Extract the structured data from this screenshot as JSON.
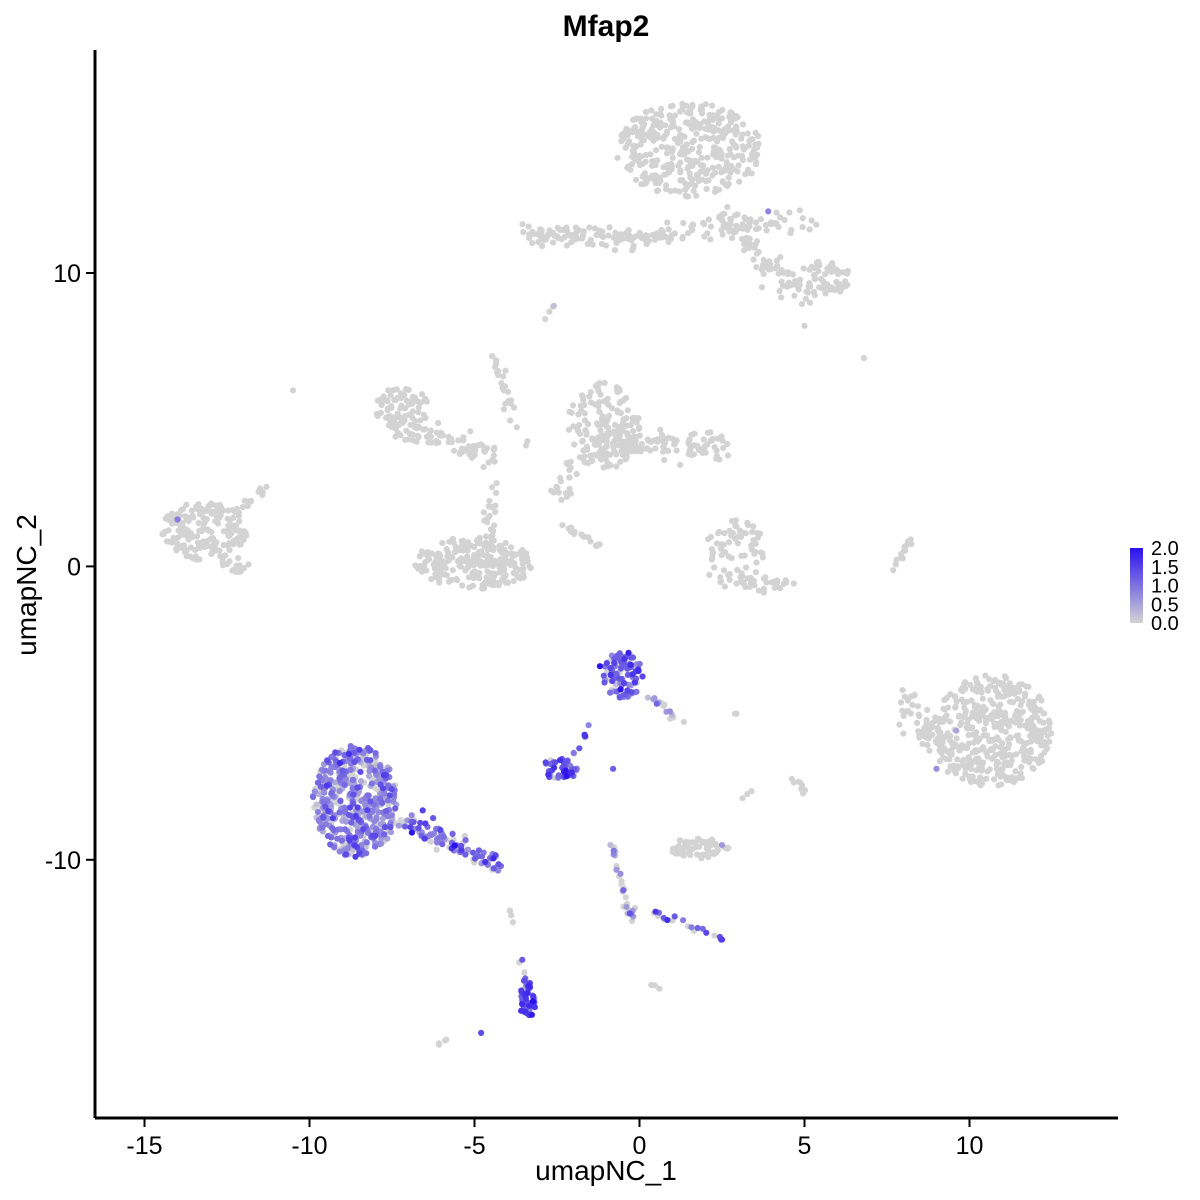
{
  "chart_data": {
    "type": "scatter",
    "title": "Mfap2",
    "xlabel": "umapNC_1",
    "ylabel": "umapNC_2",
    "xlim": [
      -16.5,
      14.5
    ],
    "ylim": [
      -18.8,
      17.6
    ],
    "x_ticks": [
      -15,
      -10,
      -5,
      0,
      5,
      10
    ],
    "x_tick_labels": [
      "-15",
      "-10",
      "-5",
      "0",
      "5",
      "10"
    ],
    "y_ticks": [
      -10,
      0,
      10
    ],
    "y_tick_labels": [
      "-10",
      "0",
      "10"
    ],
    "grid": false,
    "legend_position": "right",
    "colors": {
      "low": "#d3d3d3",
      "high": "#2b12ee",
      "axis": "#000000"
    },
    "color_scale": {
      "min": 0.0,
      "max": 2.0,
      "breaks": [
        2.0,
        1.5,
        1.0,
        0.5,
        0.0
      ],
      "break_labels": [
        "2.0",
        "1.5",
        "1.0",
        "0.5",
        "0.0"
      ]
    },
    "clusters": [
      {
        "shape": "blob",
        "cx": 1.5,
        "cy": 14.2,
        "rx": 2.2,
        "ry": 1.6,
        "n": 380,
        "expr": 0,
        "prob": 0
      },
      {
        "shape": "line",
        "x1": -3.5,
        "y1": 11.3,
        "x2": 1.0,
        "y2": 11.2,
        "w": 0.35,
        "n": 120,
        "expr": 0,
        "prob": 0
      },
      {
        "shape": "line",
        "x1": 1.0,
        "y1": 11.5,
        "x2": 5.5,
        "y2": 11.8,
        "w": 0.35,
        "n": 60,
        "expr": 0,
        "prob": 0
      },
      {
        "shape": "line",
        "x1": 2.5,
        "y1": 12.0,
        "x2": 5.0,
        "y2": 9.0,
        "w": 0.4,
        "n": 90,
        "expr": 0,
        "prob": 0
      },
      {
        "shape": "blob",
        "cx": 5.6,
        "cy": 9.8,
        "rx": 0.8,
        "ry": 0.6,
        "n": 60,
        "expr": 0,
        "prob": 0
      },
      {
        "shape": "blob",
        "cx": -7.2,
        "cy": 5.4,
        "rx": 0.8,
        "ry": 0.8,
        "n": 70,
        "expr": 0,
        "prob": 0
      },
      {
        "shape": "line",
        "x1": -7.2,
        "y1": 4.8,
        "x2": -4.5,
        "y2": 3.8,
        "w": 0.45,
        "n": 80,
        "expr": 0,
        "prob": 0
      },
      {
        "shape": "line",
        "x1": -4.5,
        "y1": 7.5,
        "x2": -3.5,
        "y2": 4.0,
        "w": 0.15,
        "n": 25,
        "expr": 0,
        "prob": 0
      },
      {
        "shape": "blob",
        "cx": -5.0,
        "cy": 0.1,
        "rx": 1.8,
        "ry": 0.9,
        "n": 240,
        "expr": 0,
        "prob": 0
      },
      {
        "shape": "line",
        "x1": -4.5,
        "y1": 2.8,
        "x2": -4.5,
        "y2": 0.8,
        "w": 0.2,
        "n": 20,
        "expr": 0,
        "prob": 0
      },
      {
        "shape": "blob",
        "cx": -1.1,
        "cy": 4.8,
        "rx": 1.1,
        "ry": 1.5,
        "n": 150,
        "expr": 0,
        "prob": 0
      },
      {
        "shape": "line",
        "x1": -1.2,
        "y1": 4.3,
        "x2": 2.6,
        "y2": 4.0,
        "w": 0.55,
        "n": 120,
        "expr": 0,
        "prob": 0
      },
      {
        "shape": "line",
        "x1": -2.0,
        "y1": 3.5,
        "x2": -2.5,
        "y2": 2.3,
        "w": 0.3,
        "n": 20,
        "expr": 0,
        "prob": 0
      },
      {
        "shape": "line",
        "x1": -2.5,
        "y1": 1.5,
        "x2": -1.2,
        "y2": 0.7,
        "w": 0.12,
        "n": 18,
        "expr": 0,
        "prob": 0
      },
      {
        "shape": "blob",
        "cx": 2.9,
        "cy": 0.6,
        "rx": 0.9,
        "ry": 1.0,
        "n": 60,
        "expr": 0,
        "prob": 0
      },
      {
        "shape": "line",
        "x1": 2.2,
        "y1": -0.4,
        "x2": 4.4,
        "y2": -0.6,
        "w": 0.25,
        "n": 40,
        "expr": 0,
        "prob": 0
      },
      {
        "shape": "line",
        "x1": 7.7,
        "y1": -0.2,
        "x2": 8.2,
        "y2": 1.0,
        "w": 0.1,
        "n": 14,
        "expr": 0,
        "prob": 0
      },
      {
        "shape": "blob",
        "cx": -13.2,
        "cy": 1.2,
        "rx": 1.3,
        "ry": 1.0,
        "n": 180,
        "expr": 0,
        "prob": 0
      },
      {
        "shape": "line",
        "x1": -12.7,
        "y1": 0.3,
        "x2": -12.0,
        "y2": -0.2,
        "w": 0.25,
        "n": 20,
        "expr": 0,
        "prob": 0
      },
      {
        "shape": "line",
        "x1": -12.4,
        "y1": 1.6,
        "x2": -11.3,
        "y2": 2.7,
        "w": 0.15,
        "n": 14,
        "expr": 0,
        "prob": 0
      },
      {
        "shape": "blob",
        "cx": 10.7,
        "cy": -5.6,
        "rx": 1.8,
        "ry": 1.9,
        "n": 420,
        "expr": 0,
        "prob": 0
      },
      {
        "shape": "line",
        "x1": 9.4,
        "y1": -6.5,
        "x2": 8.0,
        "y2": -4.5,
        "w": 0.5,
        "n": 60,
        "expr": 0,
        "prob": 0
      },
      {
        "shape": "blob",
        "cx": -8.6,
        "cy": -8.0,
        "rx": 1.3,
        "ry": 1.9,
        "n": 520,
        "expr": 0.8,
        "prob": 0.75
      },
      {
        "shape": "line",
        "x1": -7.3,
        "y1": -8.6,
        "x2": -4.2,
        "y2": -10.2,
        "w": 0.3,
        "n": 100,
        "expr": 1.0,
        "prob": 0.8
      },
      {
        "shape": "blob",
        "cx": -0.5,
        "cy": -3.7,
        "rx": 0.6,
        "ry": 0.8,
        "n": 100,
        "expr": 1.2,
        "prob": 0.75
      },
      {
        "shape": "line",
        "x1": 0.3,
        "y1": -4.3,
        "x2": 1.2,
        "y2": -5.4,
        "w": 0.15,
        "n": 15,
        "expr": 0.6,
        "prob": 0.5
      },
      {
        "shape": "blob",
        "cx": -2.4,
        "cy": -6.9,
        "rx": 0.6,
        "ry": 0.35,
        "n": 50,
        "expr": 1.4,
        "prob": 0.9
      },
      {
        "shape": "line",
        "x1": -2.0,
        "y1": -6.5,
        "x2": -1.5,
        "y2": -5.4,
        "w": 0.08,
        "n": 8,
        "expr": 1.0,
        "prob": 0.8
      },
      {
        "shape": "line",
        "x1": -0.9,
        "y1": -9.3,
        "x2": -0.2,
        "y2": -12.1,
        "w": 0.15,
        "n": 30,
        "expr": 0.6,
        "prob": 0.55
      },
      {
        "shape": "line",
        "x1": 0.5,
        "y1": -11.8,
        "x2": 2.6,
        "y2": -12.7,
        "w": 0.15,
        "n": 20,
        "expr": 1.0,
        "prob": 0.7
      },
      {
        "shape": "blob",
        "cx": -3.4,
        "cy": -14.8,
        "rx": 0.25,
        "ry": 0.6,
        "n": 40,
        "expr": 1.5,
        "prob": 0.8
      },
      {
        "shape": "line",
        "x1": -3.6,
        "y1": -13.4,
        "x2": -3.2,
        "y2": -15.2,
        "w": 0.12,
        "n": 14,
        "expr": 1.3,
        "prob": 0.6
      },
      {
        "shape": "line",
        "x1": -4.0,
        "y1": -11.3,
        "x2": -3.8,
        "y2": -12.5,
        "w": 0.05,
        "n": 4,
        "expr": 0,
        "prob": 0
      },
      {
        "shape": "blob",
        "cx": 1.8,
        "cy": -9.6,
        "rx": 0.9,
        "ry": 0.35,
        "n": 70,
        "expr": 0,
        "prob": 0
      },
      {
        "shape": "line",
        "x1": 4.6,
        "y1": -7.2,
        "x2": 5.1,
        "y2": -7.7,
        "w": 0.1,
        "n": 8,
        "expr": 0,
        "prob": 0
      },
      {
        "shape": "line",
        "x1": 3.0,
        "y1": -8.0,
        "x2": 3.4,
        "y2": -7.6,
        "w": 0.05,
        "n": 3,
        "expr": 0,
        "prob": 0
      },
      {
        "shape": "line",
        "x1": 2.7,
        "y1": -5.0,
        "x2": 3.0,
        "y2": -5.0,
        "w": 0.05,
        "n": 3,
        "expr": 0,
        "prob": 0
      },
      {
        "shape": "line",
        "x1": -6.1,
        "y1": -16.3,
        "x2": -5.8,
        "y2": -16.1,
        "w": 0.05,
        "n": 4,
        "expr": 0,
        "prob": 0
      },
      {
        "shape": "line",
        "x1": 0.4,
        "y1": -14.3,
        "x2": 0.6,
        "y2": -14.4,
        "w": 0.05,
        "n": 3,
        "expr": 0,
        "prob": 0
      },
      {
        "shape": "line",
        "x1": -2.9,
        "y1": 8.4,
        "x2": -2.6,
        "y2": 8.9,
        "w": 0.05,
        "n": 4,
        "expr": 0,
        "prob": 0.5
      }
    ],
    "extra_points": [
      {
        "x": -10.5,
        "y": 6.0,
        "v": 0
      },
      {
        "x": 6.8,
        "y": 7.1,
        "v": 0
      },
      {
        "x": 5.0,
        "y": 8.2,
        "v": 0
      },
      {
        "x": -14.0,
        "y": 1.6,
        "v": 0.9
      },
      {
        "x": 9.0,
        "y": -6.9,
        "v": 0.7
      },
      {
        "x": 9.6,
        "y": -5.6,
        "v": 0.5
      },
      {
        "x": 3.9,
        "y": 12.1,
        "v": 0.8
      },
      {
        "x": 2.5,
        "y": -9.5,
        "v": 0.6
      },
      {
        "x": -4.8,
        "y": -15.9,
        "v": 1.4
      },
      {
        "x": -1.2,
        "y": -3.4,
        "v": 2.0
      },
      {
        "x": -0.8,
        "y": -6.9,
        "v": 1.2
      }
    ]
  }
}
